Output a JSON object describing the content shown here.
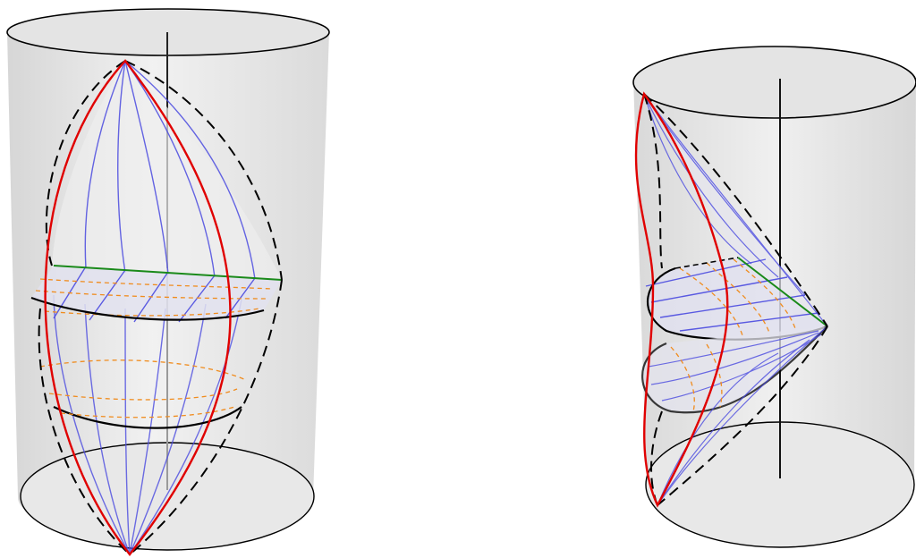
{
  "figures": [
    {
      "id": "left",
      "view": "symmetric-lens-in-cylinder"
    },
    {
      "id": "right",
      "view": "wedge-in-cylinder-side-view"
    }
  ],
  "colors": {
    "cylinder_fill": "#d9d9d9",
    "cylinder_side_highlight": "#f2f2f2",
    "cap_fill": "#e6e6e6",
    "outline": "#000000",
    "axis": "#000000",
    "red_curve": "#e00000",
    "blue_curves": "#4a4adf",
    "orange_dashed": "#f08c1e",
    "green_edge": "#1a8a1a",
    "dashed_boundary": "#000000"
  }
}
